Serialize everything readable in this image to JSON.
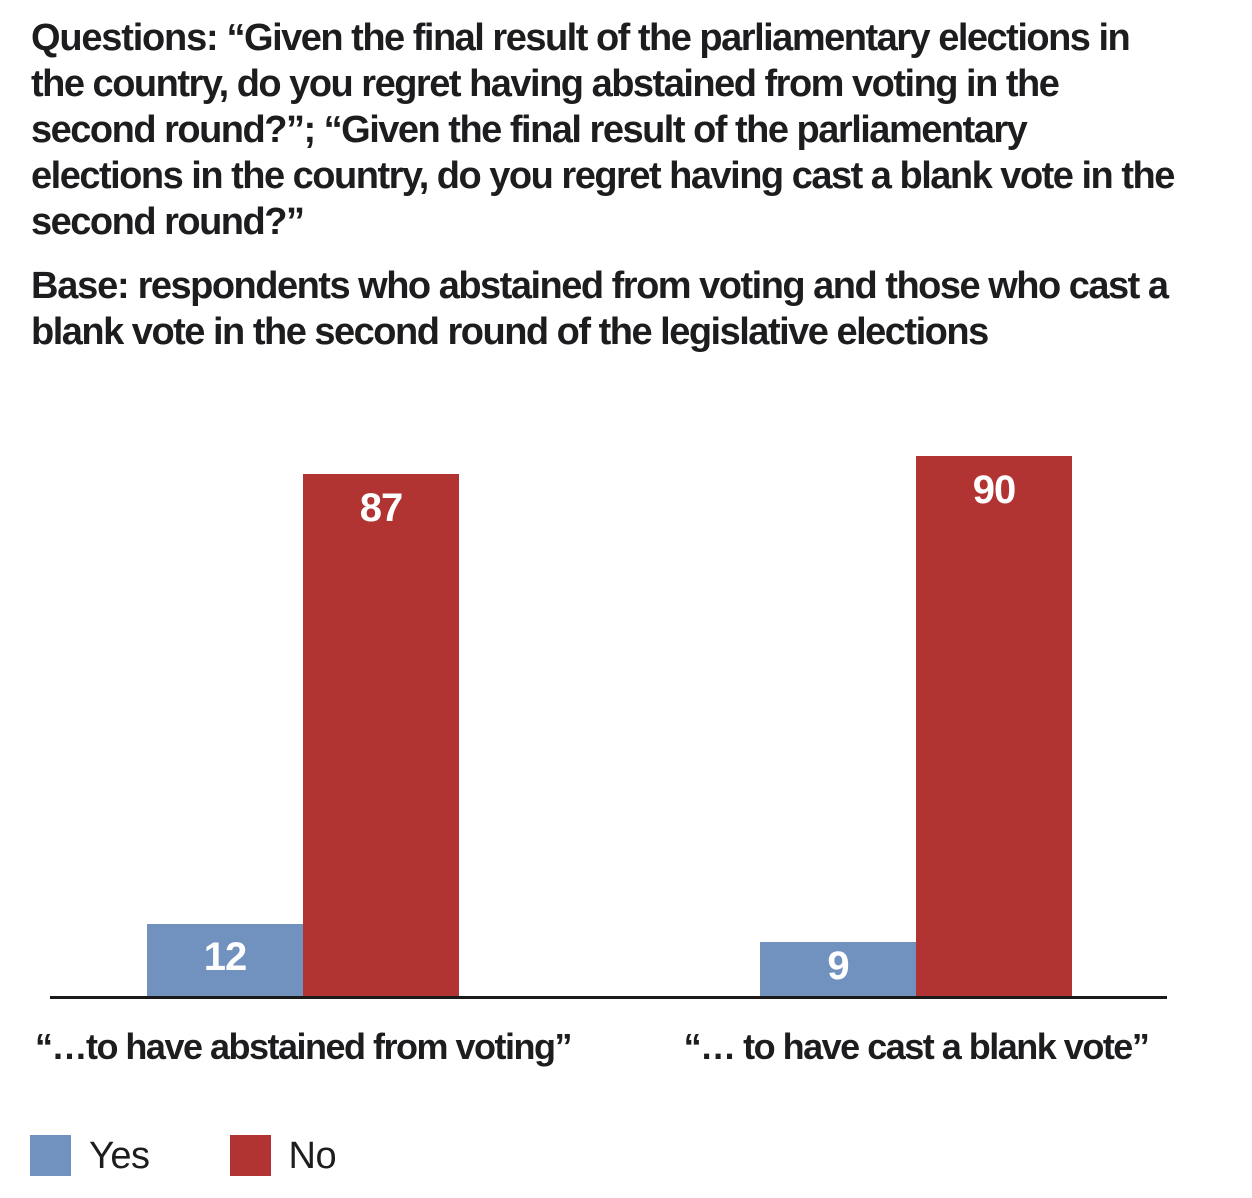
{
  "header": {
    "questions_label": "Questions:",
    "questions_text": "“Given the final result of the parliamentary elections in the country, do you regret having abstained from voting in the second round?”; “Given the final result of the parliamentary elections in the country, do you regret having cast a blank vote in the second round?”",
    "base_label": "Base:",
    "base_text": "respondents who abstained from voting and those who cast a blank vote in the second round of the legislative elections"
  },
  "chart_data": {
    "type": "bar",
    "categories": [
      "“…to have abstained from voting”",
      "“… to have cast a blank vote”"
    ],
    "series": [
      {
        "name": "Yes",
        "color": "#7191BF",
        "values": [
          12,
          9
        ]
      },
      {
        "name": "No",
        "color": "#B23432",
        "values": [
          87,
          90
        ]
      }
    ],
    "ylim": [
      0,
      100
    ],
    "grid": false,
    "axis_color": "#1a1a1a",
    "value_label_color": "#ffffff",
    "value_labels_position": "inside-top",
    "legend_position": "bottom-left"
  },
  "legend": {
    "items": [
      {
        "label": "Yes",
        "color": "#7191BF"
      },
      {
        "label": "No",
        "color": "#B23432"
      }
    ]
  }
}
